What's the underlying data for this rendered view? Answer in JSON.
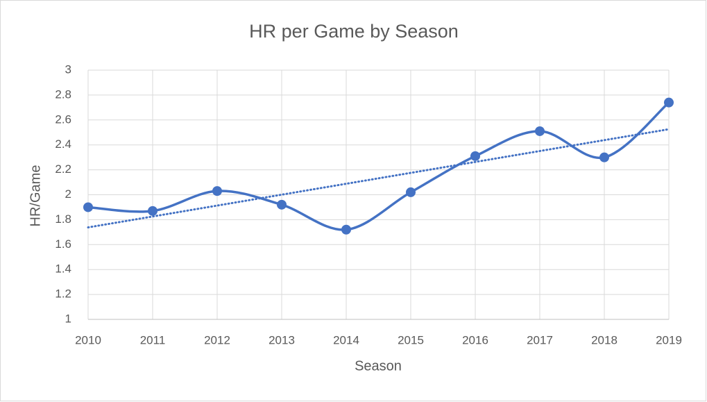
{
  "chart_data": {
    "type": "line",
    "title": "HR per Game by Season",
    "x_label": "Season",
    "y_label": "HR/Game",
    "categories": [
      "2010",
      "2011",
      "2012",
      "2013",
      "2014",
      "2015",
      "2016",
      "2017",
      "2018",
      "2019"
    ],
    "series": [
      {
        "name": "HR/Game",
        "color": "#4472c4",
        "values": [
          1.9,
          1.87,
          2.03,
          1.92,
          1.72,
          2.02,
          2.31,
          2.51,
          2.3,
          2.74
        ]
      }
    ],
    "ylim": [
      1,
      3
    ],
    "yticks": [
      1,
      1.2,
      1.4,
      1.6,
      1.8,
      2,
      2.2,
      2.4,
      2.6,
      2.8,
      3
    ],
    "grid": true,
    "smooth": true,
    "trendline": "linear"
  }
}
